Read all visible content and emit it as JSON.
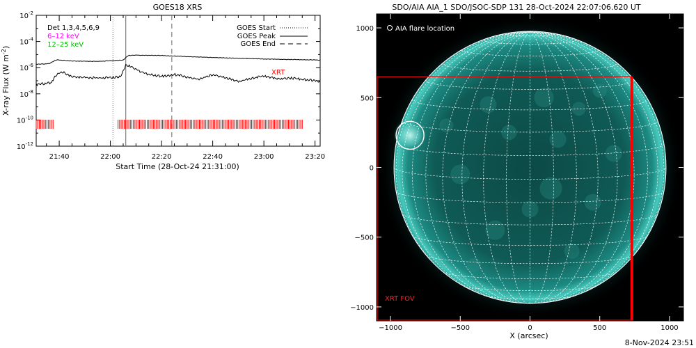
{
  "left_chart": {
    "title": "GOES18 XRS",
    "ylabel_main": "X-ray Flux (W m",
    "ylabel_exp": "-2",
    "ylabel_close": ")",
    "xlabel": "Start Time (28-Oct-24 21:31:00)",
    "det_label": "Det 1,3,4,5,6,9",
    "band_1_label": "6–12 keV",
    "band_2_label": "12–25 keV",
    "xrt_label": "XRT",
    "legend": [
      {
        "label": "GOES Start",
        "style": "dotted"
      },
      {
        "label": "GOES Peak",
        "style": "solid"
      },
      {
        "label": "GOES End",
        "style": "dashed"
      }
    ],
    "colors": {
      "band_1": "#ff00ff",
      "band_2": "#00c000",
      "xrt": "#ff0000"
    }
  },
  "right_chart": {
    "title": "SDO/AIA AIA_1 SDO/JSOC-SDP 131 28-Oct-2024 22:07:06.620 UT",
    "flare_legend": "AIA flare location",
    "xrt_fov_label": "XRT FOV",
    "xlabel": "X (arcsec)",
    "footer": "8-Nov-2024 23:51"
  },
  "chart_data": [
    {
      "type": "line",
      "title": "GOES18 XRS",
      "xlabel": "Start Time (28-Oct-24 21:31:00)",
      "ylabel": "X-ray Flux (W m^-2)",
      "y_scale": "log",
      "ylim": [
        1e-12,
        0.01
      ],
      "xlim": [
        "21:31",
        "23:22"
      ],
      "x_ticks": [
        "21:40",
        "22:00",
        "22:20",
        "22:40",
        "23:00",
        "23:20"
      ],
      "y_ticks": [
        "10^-12",
        "10^-10",
        "10^-8",
        "10^-6",
        "10^-4",
        "10^-2"
      ],
      "series": [
        {
          "name": "upper",
          "color": "#000000",
          "x": [
            "21:31",
            "21:36",
            "21:39",
            "21:45",
            "21:55",
            "22:05",
            "22:07",
            "22:10",
            "22:20",
            "22:30",
            "22:40",
            "22:50",
            "23:00",
            "23:10",
            "23:20",
            "23:22"
          ],
          "y": [
            1.8e-06,
            2e-06,
            4e-06,
            3.2e-06,
            3e-06,
            3.8e-06,
            8.5e-06,
            9e-06,
            8.5e-06,
            7e-06,
            6e-06,
            5.2e-06,
            4.6e-06,
            4.2e-06,
            3.9e-06,
            3.8e-06
          ]
        },
        {
          "name": "lower",
          "color": "#000000",
          "x": [
            "21:31",
            "21:37",
            "21:39",
            "21:41",
            "21:45",
            "21:55",
            "22:04",
            "22:06",
            "22:08",
            "22:10",
            "22:15",
            "22:20",
            "22:25",
            "22:30",
            "22:35",
            "22:40",
            "22:45",
            "22:50",
            "22:55",
            "23:00",
            "23:05",
            "23:10",
            "23:15",
            "23:20",
            "23:22"
          ],
          "y": [
            5e-08,
            7e-08,
            3e-07,
            5e-07,
            2e-07,
            1.6e-07,
            2e-07,
            1.5e-06,
            1.3e-06,
            7e-07,
            3e-07,
            2.1e-07,
            3e-07,
            1.9e-07,
            1.3e-07,
            3e-07,
            1.7e-07,
            9e-08,
            1.4e-07,
            2.4e-07,
            1.4e-07,
            1.6e-07,
            1.3e-07,
            1e-07,
            9e-08
          ]
        }
      ],
      "markers": {
        "goes_start": "22:01",
        "goes_peak": "22:06",
        "goes_end": "22:24"
      },
      "xrt_coverage": [
        [
          "21:31",
          "21:38"
        ],
        [
          "22:03",
          "23:15"
        ]
      ]
    },
    {
      "type": "image",
      "title": "SDO/AIA AIA_1 SDO/JSOC-SDP 131 28-Oct-2024 22:07:06.620 UT",
      "xlabel": "X (arcsec)",
      "xlim": [
        -1100,
        1100
      ],
      "ylim": [
        -1100,
        1100
      ],
      "x_ticks": [
        -1000,
        -500,
        0,
        500,
        1000
      ],
      "y_ticks": [
        -1000,
        -500,
        0,
        500,
        1000
      ],
      "flare_location": {
        "x": -860,
        "y": 230
      },
      "xrt_fov": {
        "x": [
          -1100,
          730
        ],
        "y": [
          -1100,
          650
        ]
      }
    }
  ]
}
